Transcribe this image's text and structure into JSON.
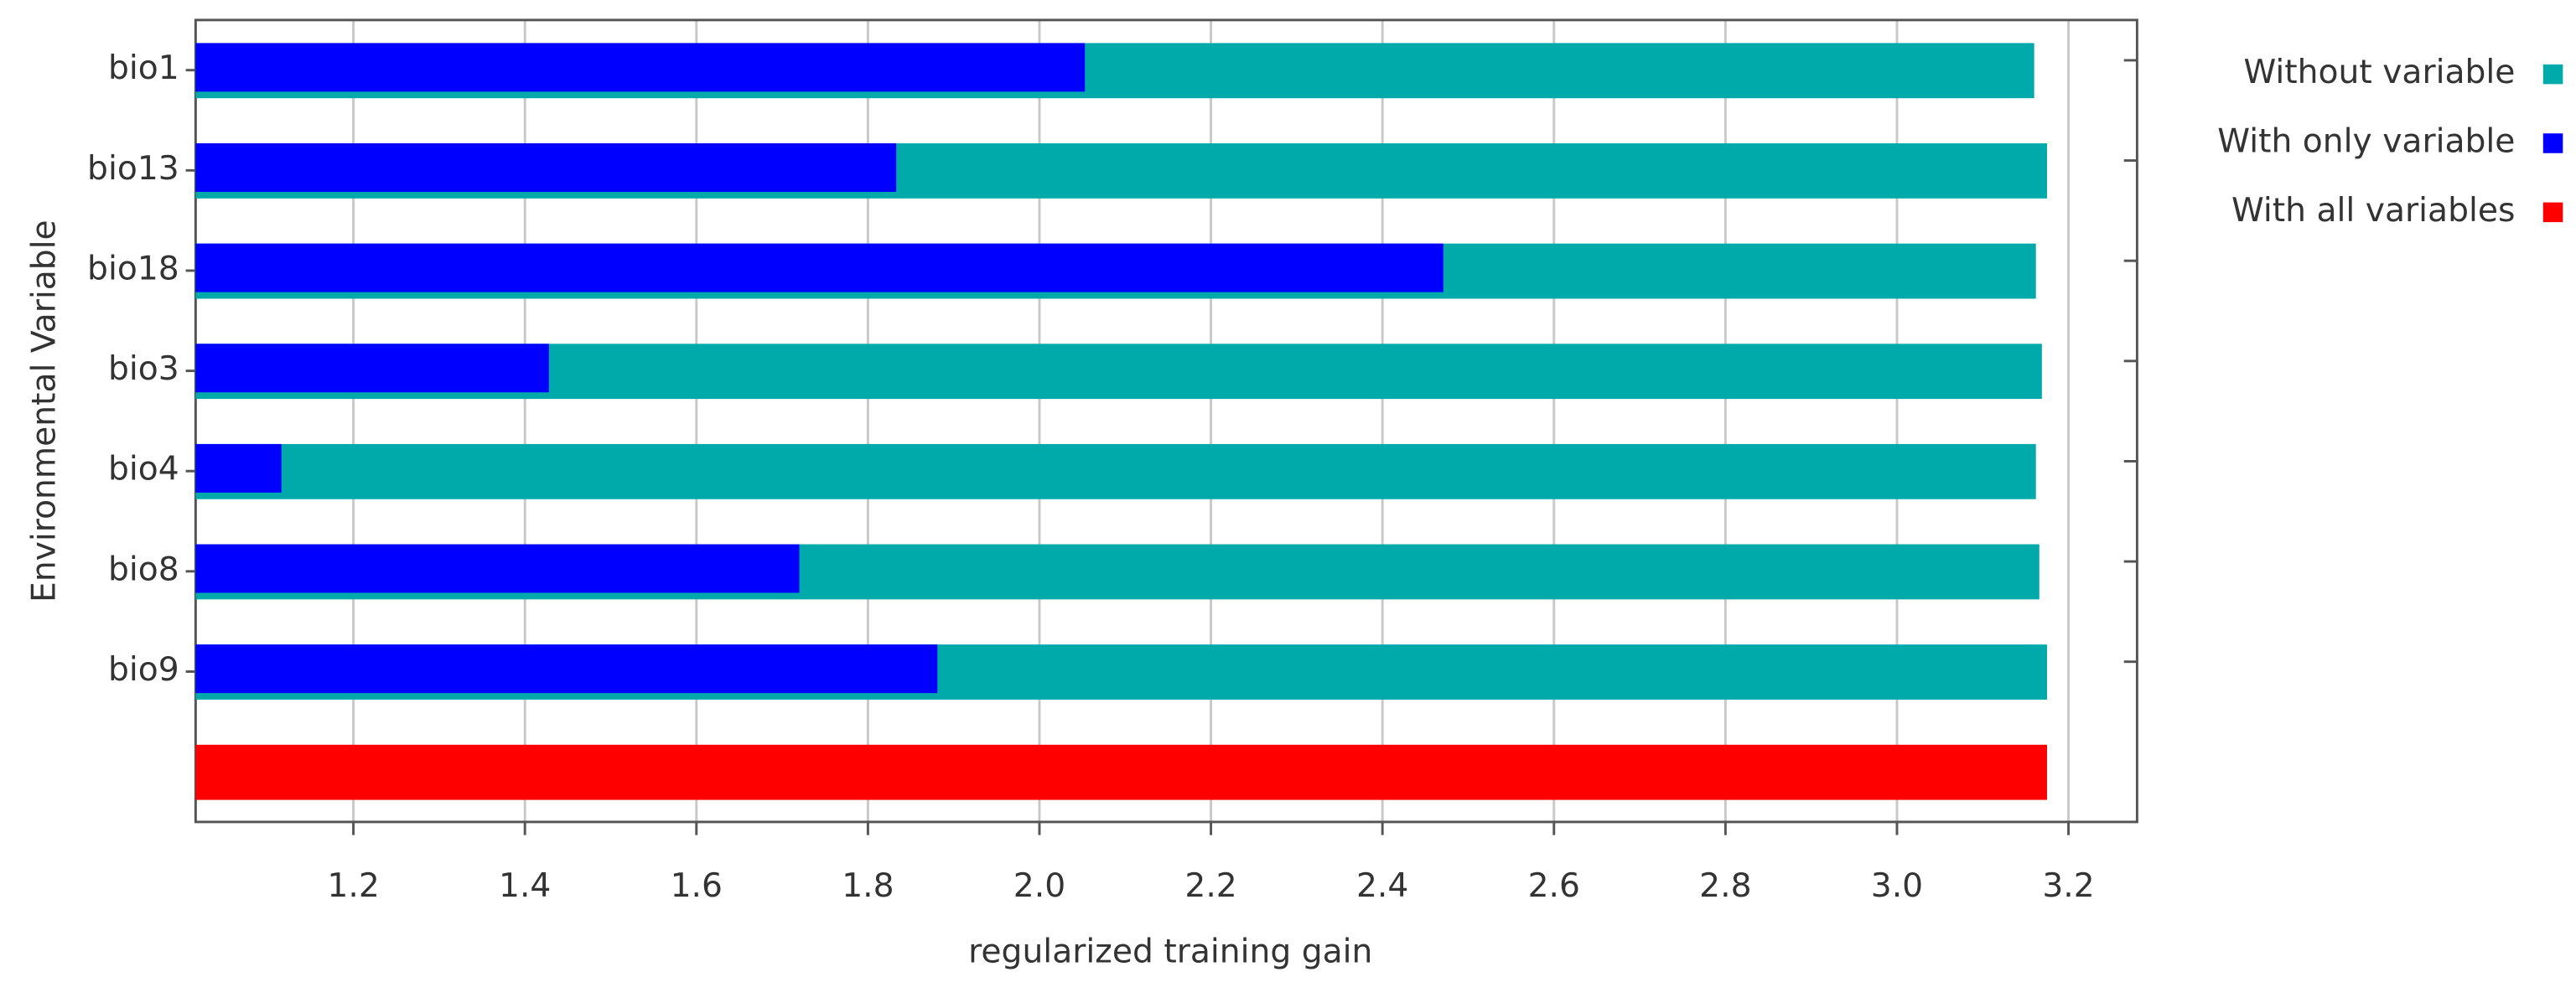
{
  "chart_data": {
    "type": "jackknife-bar",
    "xlabel": "regularized training gain",
    "ylabel": "Environmental Variable",
    "categories": [
      "bio1",
      "bio13",
      "bio18",
      "bio3",
      "bio4",
      "bio8",
      "bio9",
      null
    ],
    "series": [
      {
        "name": "Without variable",
        "color": "#00aaaa",
        "values": [
          3.16,
          3.175,
          3.162,
          3.169,
          3.162,
          3.166,
          3.175,
          null
        ]
      },
      {
        "name": "With only variable",
        "color": "#0000ff",
        "values": [
          2.053,
          1.833,
          2.471,
          1.428,
          1.116,
          1.72,
          1.881,
          null
        ]
      },
      {
        "name": "With all variables",
        "color": "#ff0000",
        "values": [
          null,
          null,
          null,
          null,
          null,
          null,
          null,
          3.175
        ]
      }
    ],
    "xlim": [
      1.016,
      3.28
    ],
    "xticks": [
      1.2,
      1.4,
      1.6,
      1.8,
      {
        "value": 2.0,
        "label": "2.0"
      },
      2.2,
      2.4,
      2.6,
      2.8,
      {
        "value": 3.0,
        "label": "3.0"
      },
      3.2
    ],
    "grid": true,
    "legend": "top-right"
  }
}
